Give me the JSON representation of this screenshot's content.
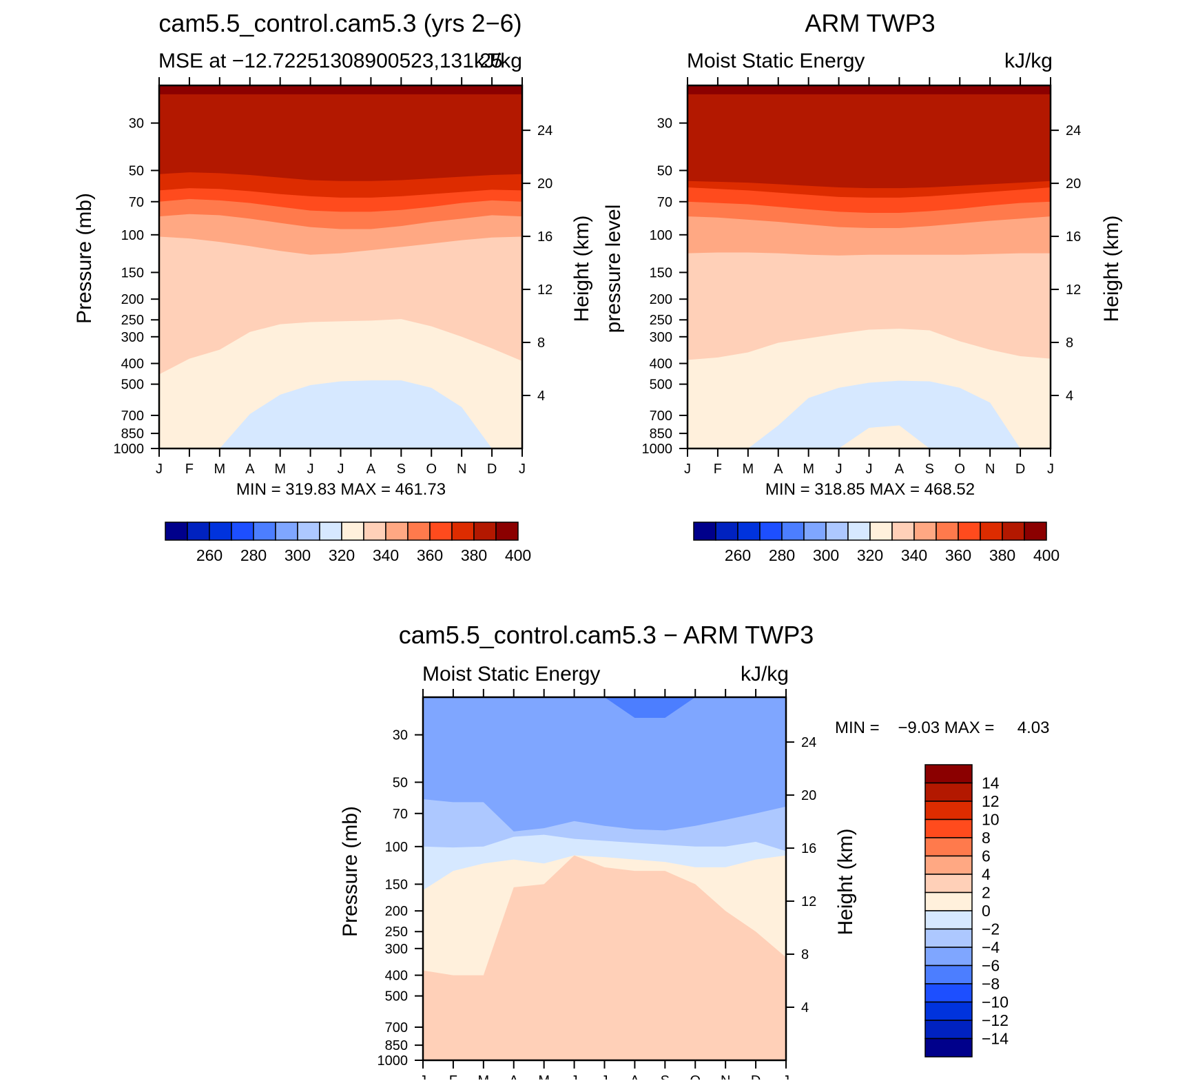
{
  "chart_data": [
    {
      "type": "heatmap",
      "title": "cam5.5_control.cam5.3 (yrs 2−6)",
      "subtitle_left": "MSE at −12.72251308900523,131.25",
      "subtitle_right": "kJ/kg",
      "ylabel": "Pressure (mb)",
      "ylabel_right": "Height (km)",
      "x_ticks": [
        "J",
        "F",
        "M",
        "A",
        "M",
        "J",
        "J",
        "A",
        "S",
        "O",
        "N",
        "D",
        "J"
      ],
      "y_ticks": [
        "30",
        "50",
        "70",
        "100",
        "150",
        "200",
        "250",
        "300",
        "400",
        "500",
        "700",
        "850",
        "1000"
      ],
      "y_right_ticks": [
        "24",
        "20",
        "16",
        "12",
        "8",
        "4"
      ],
      "ylim": [
        1000,
        20
      ],
      "y_scale": "log",
      "x": [
        "J",
        "F",
        "M",
        "A",
        "M",
        "J",
        "J",
        "A",
        "S",
        "O",
        "N",
        "D",
        "J"
      ],
      "contour_boundaries_hpa": {
        "400": [
          22.0,
          22.0,
          22.0,
          22.0,
          22.0,
          22.0,
          22.0,
          22.0,
          22.0,
          22.0,
          22.0,
          22.0,
          22.0
        ],
        "390": [
          52.0,
          51.0,
          51.5,
          52.5,
          54.0,
          55.5,
          56.0,
          56.0,
          55.5,
          54.5,
          53.5,
          52.5,
          52.0
        ],
        "380": [
          62.0,
          60.5,
          61.0,
          62.5,
          64.5,
          66.0,
          67.0,
          67.0,
          66.0,
          64.5,
          63.0,
          61.5,
          62.0
        ],
        "370": [
          70.0,
          68.0,
          69.0,
          71.0,
          74.0,
          77.0,
          78.0,
          78.0,
          76.5,
          74.0,
          71.0,
          69.0,
          70.0
        ],
        "360": [
          82.0,
          80.0,
          81.0,
          84.0,
          88.0,
          92.0,
          94.0,
          94.0,
          91.0,
          87.0,
          84.0,
          81.0,
          82.0
        ],
        "350": [
          102.0,
          104.0,
          108.0,
          113.0,
          119.0,
          124.0,
          122.0,
          118.0,
          114.0,
          110.0,
          106.0,
          103.0,
          102.0
        ],
        "340": [
          450.0,
          380.0,
          345.0,
          285.0,
          262.0,
          256.0,
          254.0,
          252.0,
          248.0,
          268.0,
          300.0,
          340.0,
          390.0
        ],
        "330": [
          1000.0,
          1000.0,
          1000.0,
          690.0,
          560.0,
          505.0,
          485.0,
          480.0,
          480.0,
          520.0,
          640.0,
          1000.0,
          1000.0
        ],
        "320": [
          1000.0,
          1000.0,
          1000.0,
          1000.0,
          1000.0,
          1000.0,
          995.0,
          1000.0,
          1000.0,
          1000.0,
          1000.0,
          1000.0,
          1000.0
        ]
      },
      "stats": {
        "min": "319.83",
        "max": "461.73"
      },
      "stats_text": "MIN = 319.83 MAX = 461.73"
    },
    {
      "type": "heatmap",
      "title": "ARM TWP3",
      "subtitle_left": "Moist Static Energy",
      "subtitle_right": "kJ/kg",
      "ylabel": "pressure level",
      "ylabel_right": "Height (km)",
      "x_ticks": [
        "J",
        "F",
        "M",
        "A",
        "M",
        "J",
        "J",
        "A",
        "S",
        "O",
        "N",
        "D",
        "J"
      ],
      "y_ticks": [
        "30",
        "50",
        "70",
        "100",
        "150",
        "200",
        "250",
        "300",
        "400",
        "500",
        "700",
        "850",
        "1000"
      ],
      "y_right_ticks": [
        "24",
        "20",
        "16",
        "12",
        "8",
        "4"
      ],
      "ylim": [
        1000,
        20
      ],
      "y_scale": "log",
      "x": [
        "J",
        "F",
        "M",
        "A",
        "M",
        "J",
        "J",
        "A",
        "S",
        "O",
        "N",
        "D",
        "J"
      ],
      "contour_boundaries_hpa": {
        "400": [
          22.0,
          22.0,
          22.0,
          22.0,
          22.0,
          22.0,
          22.0,
          22.0,
          22.0,
          22.0,
          22.0,
          22.0,
          22.0
        ],
        "390": [
          56.0,
          56.5,
          57.0,
          58.0,
          59.0,
          60.0,
          60.5,
          60.5,
          60.0,
          59.0,
          58.0,
          57.0,
          56.0
        ],
        "380": [
          60.0,
          61.0,
          62.0,
          63.5,
          65.0,
          66.5,
          67.0,
          67.0,
          66.0,
          64.5,
          63.0,
          61.5,
          60.0
        ],
        "370": [
          70.0,
          71.0,
          72.0,
          74.0,
          76.0,
          78.0,
          79.0,
          79.0,
          77.5,
          75.5,
          73.0,
          71.0,
          70.0
        ],
        "360": [
          82.0,
          83.0,
          85.0,
          87.0,
          89.5,
          92.0,
          93.0,
          93.0,
          91.0,
          88.5,
          86.0,
          84.0,
          82.0
        ],
        "350": [
          122.0,
          121.0,
          121.0,
          122.0,
          124.0,
          125.0,
          124.0,
          124.0,
          124.0,
          124.0,
          123.0,
          122.0,
          122.0
        ],
        "340": [
          385.0,
          375.0,
          355.0,
          320.0,
          305.0,
          290.0,
          278.0,
          275.0,
          280.0,
          315.0,
          345.0,
          370.0,
          380.0
        ],
        "330": [
          1000.0,
          1000.0,
          1000.0,
          780.0,
          580.0,
          520.0,
          492.0,
          482.0,
          485.0,
          520.0,
          610.0,
          1000.0,
          1000.0
        ],
        "320": [
          1000.0,
          1000.0,
          1000.0,
          1000.0,
          1000.0,
          1000.0,
          800.0,
          780.0,
          1000.0,
          1000.0,
          1000.0,
          1000.0,
          1000.0
        ]
      },
      "stats": {
        "min": "318.85",
        "max": "468.52"
      },
      "stats_text": "MIN = 318.85 MAX = 468.52"
    },
    {
      "type": "heatmap",
      "title": "cam5.5_control.cam5.3 − ARM TWP3",
      "subtitle_left": "Moist Static Energy",
      "subtitle_right": "kJ/kg",
      "ylabel": "Pressure (mb)",
      "ylabel_right": "Height (km)",
      "x_ticks": [
        "J",
        "F",
        "M",
        "A",
        "M",
        "J",
        "J",
        "A",
        "S",
        "O",
        "N",
        "D",
        "J"
      ],
      "y_ticks": [
        "30",
        "50",
        "70",
        "100",
        "150",
        "200",
        "250",
        "300",
        "400",
        "500",
        "700",
        "850",
        "1000"
      ],
      "y_right_ticks": [
        "24",
        "20",
        "16",
        "12",
        "8",
        "4"
      ],
      "ylim": [
        1000,
        20
      ],
      "y_scale": "log",
      "x": [
        "J",
        "F",
        "M",
        "A",
        "M",
        "J",
        "J",
        "A",
        "S",
        "O",
        "N",
        "D",
        "J"
      ],
      "contour_boundaries_hpa": {
        "-10": [
          20.0,
          20.0,
          20.0,
          20.0,
          20.0,
          20.0,
          20.0,
          20.0,
          20.0,
          20.0,
          20.0,
          20.0,
          20.0
        ],
        "-8": [
          20.0,
          20.0,
          20.0,
          20.0,
          20.0,
          20.0,
          20.0,
          25.0,
          25.0,
          20.0,
          20.0,
          20.0,
          20.0
        ],
        "-6": [
          60.0,
          62.0,
          62.0,
          85.0,
          82.0,
          76.0,
          80.0,
          83.0,
          84.0,
          80.0,
          75.0,
          70.0,
          65.0
        ],
        "-4": [
          100.0,
          101.0,
          100.0,
          90.0,
          88.0,
          92.0,
          94.0,
          96.0,
          98.0,
          100.0,
          100.0,
          95.0,
          105.0
        ],
        "-2": [
          160.0,
          130.0,
          120.0,
          115.0,
          120.0,
          110.0,
          112.0,
          115.0,
          118.0,
          125.0,
          125.0,
          115.0,
          110.0
        ],
        "0": [
          380.0,
          400.0,
          400.0,
          155.0,
          150.0,
          110.0,
          125.0,
          130.0,
          130.0,
          150.0,
          200.0,
          250.0,
          330.0
        ],
        "2": [
          1000.0,
          1000.0,
          1000.0,
          1000.0,
          1000.0,
          1000.0,
          1000.0,
          1000.0,
          1000.0,
          1000.0,
          1000.0,
          1000.0,
          1000.0
        ]
      },
      "stats": {
        "min": "−9.03",
        "max": "4.03"
      },
      "stats_text": "MIN =    −9.03 MAX =     4.03"
    }
  ],
  "colorbars": {
    "abs": {
      "colors": [
        "#00008b",
        "#0022c0",
        "#0033dd",
        "#1d4fff",
        "#4c7eff",
        "#7fa6ff",
        "#adc8ff",
        "#d6e8ff",
        "#fff0dc",
        "#ffd0b8",
        "#ffa883",
        "#ff7a4c",
        "#ff4b1d",
        "#dd2c00",
        "#b31800",
        "#8b0000"
      ],
      "labels": [
        "260",
        "280",
        "300",
        "320",
        "340",
        "360",
        "380",
        "400"
      ]
    },
    "diff": {
      "colors": [
        "#00008b",
        "#0022c0",
        "#0033dd",
        "#1d4fff",
        "#4c7eff",
        "#7fa6ff",
        "#adc8ff",
        "#d6e8ff",
        "#fff0dc",
        "#ffd0b8",
        "#ffa883",
        "#ff7a4c",
        "#ff4b1d",
        "#dd2c00",
        "#b31800",
        "#8b0000"
      ],
      "labels": [
        "−14",
        "−12",
        "−10",
        "−8",
        "−6",
        "−4",
        "−2",
        "0",
        "2",
        "4",
        "6",
        "8",
        "10",
        "12",
        "14"
      ]
    }
  }
}
